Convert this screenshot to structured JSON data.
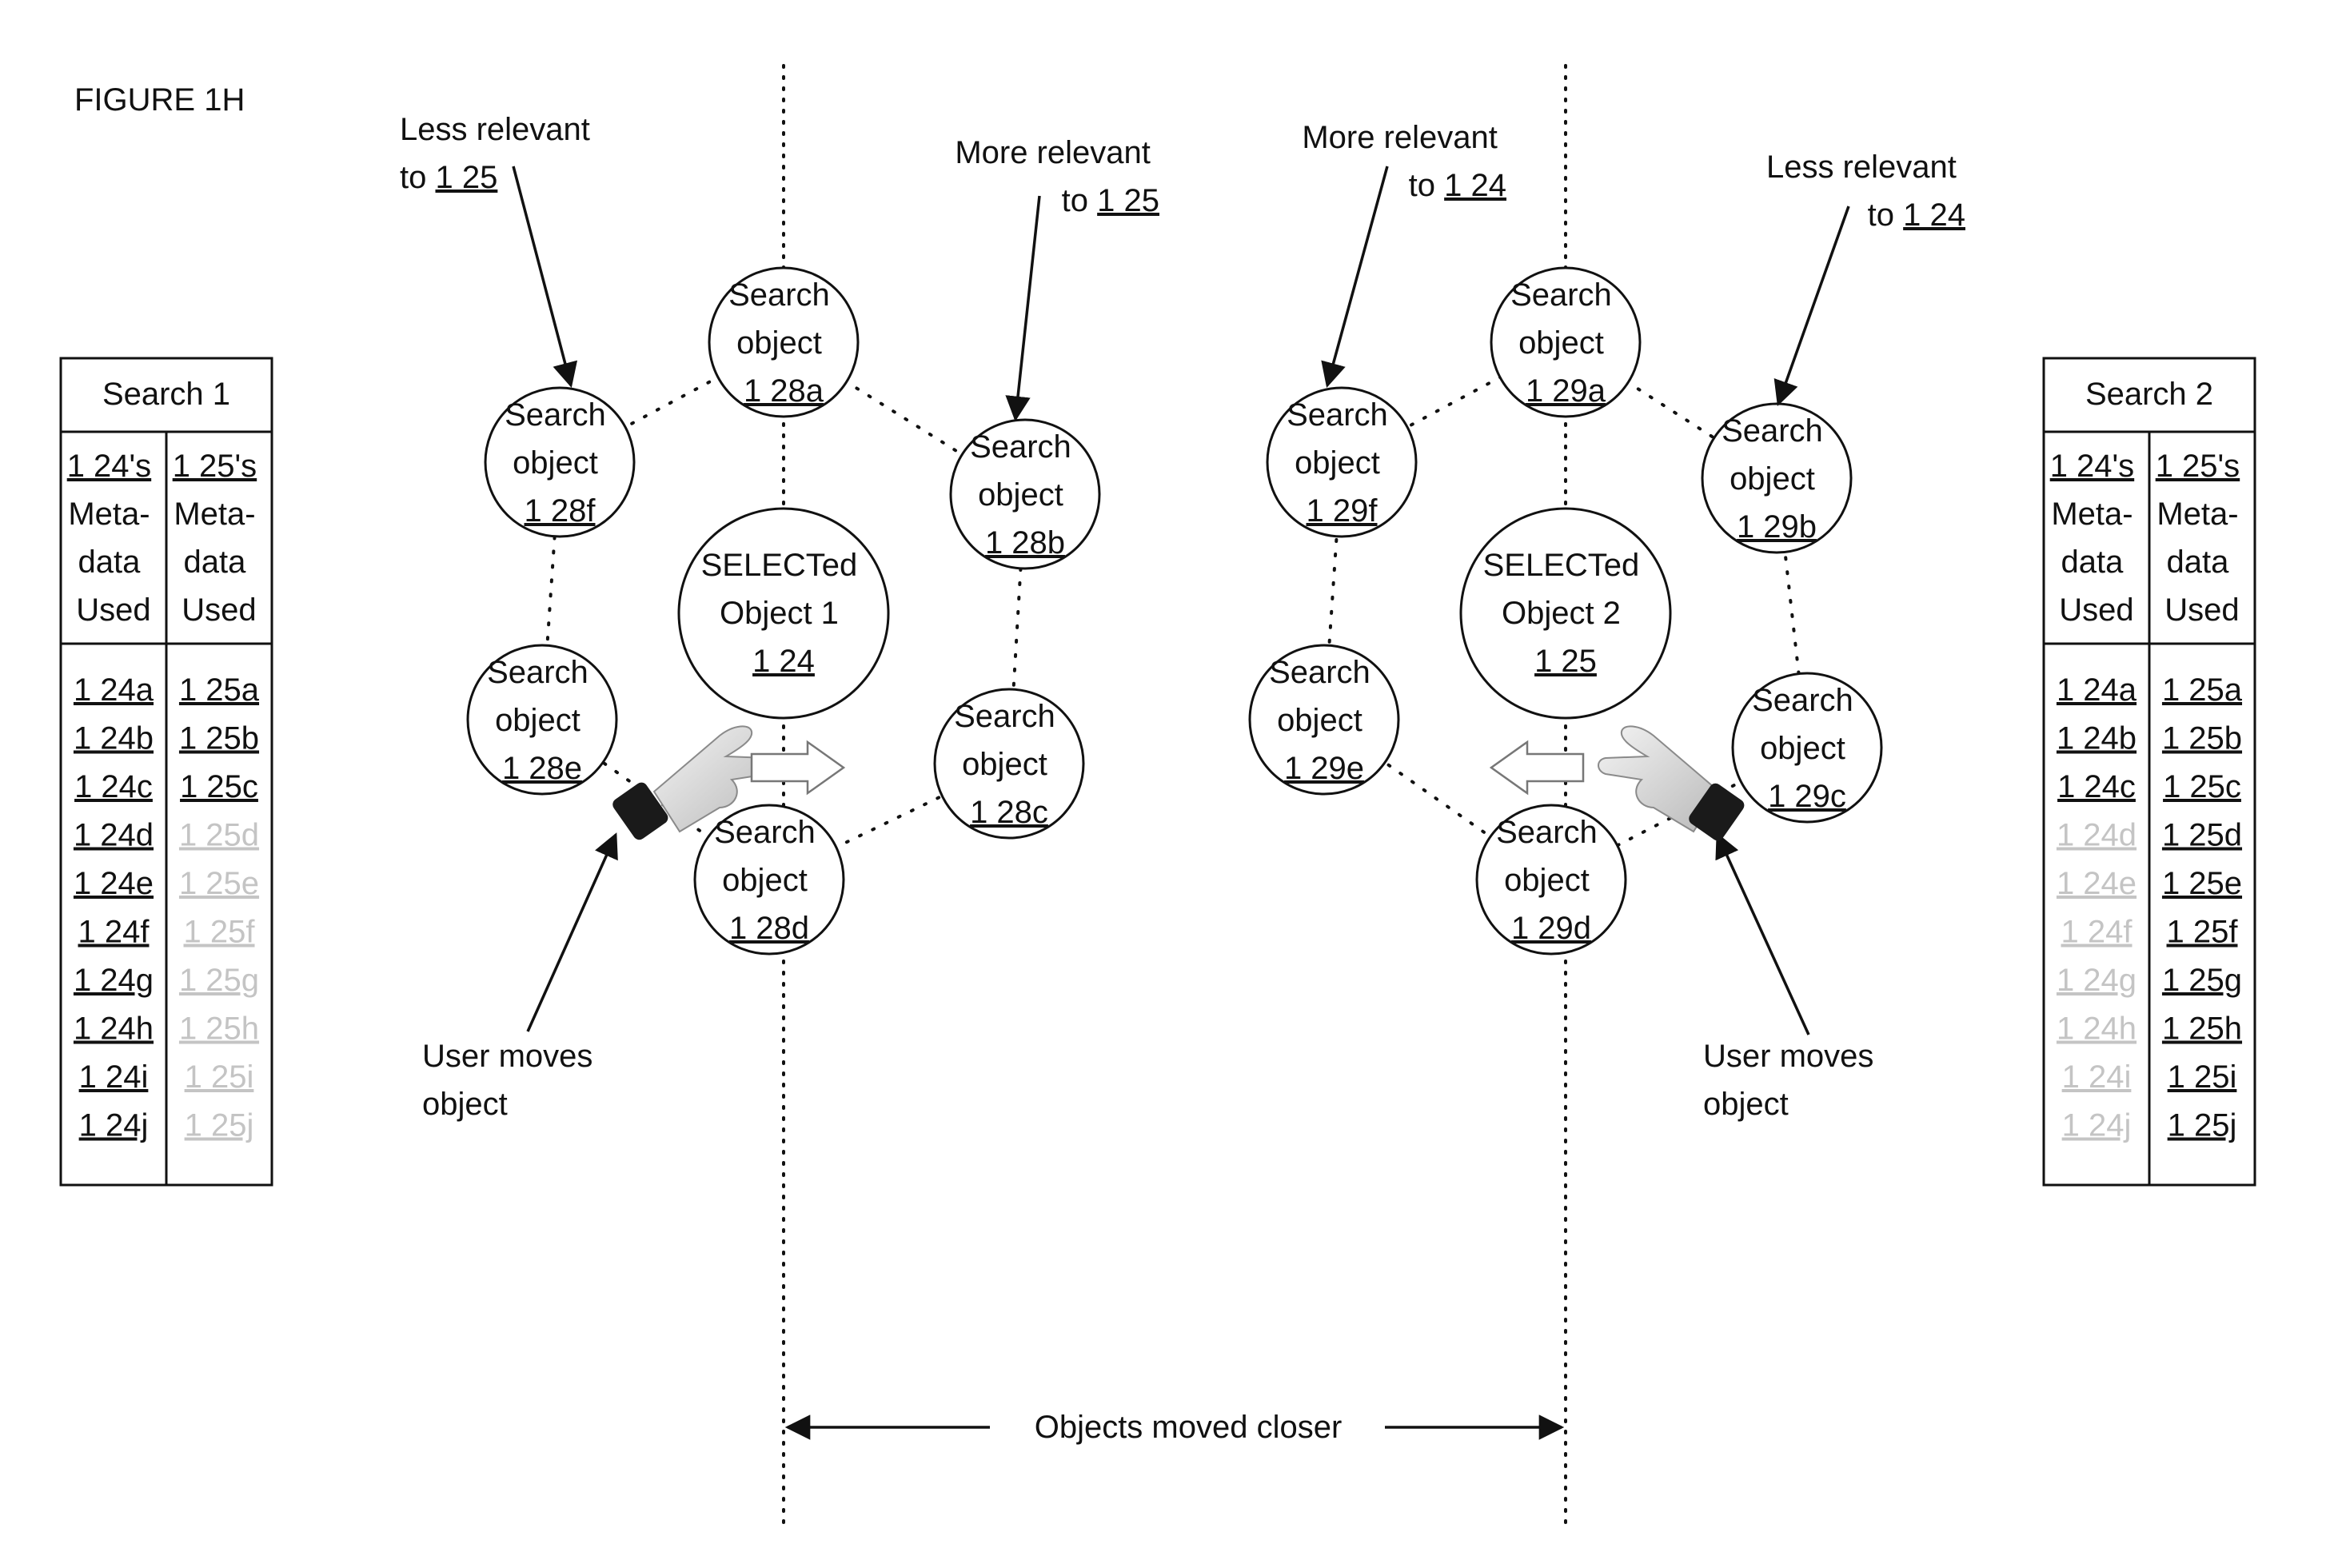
{
  "figure_label": "FIGURE 1H",
  "tables": [
    {
      "title": "Search 1",
      "col1_header": [
        "1 24's",
        "Meta-",
        "data",
        "Used"
      ],
      "col2_header": [
        "1 25's",
        "Meta-",
        "data",
        "Used"
      ],
      "col1": [
        {
          "text": "1 24a",
          "faded": false
        },
        {
          "text": "1 24b",
          "faded": false
        },
        {
          "text": "1 24c",
          "faded": false
        },
        {
          "text": "1 24d",
          "faded": false
        },
        {
          "text": "1 24e",
          "faded": false
        },
        {
          "text": "1 24f",
          "faded": false
        },
        {
          "text": "1 24g",
          "faded": false
        },
        {
          "text": "1 24h",
          "faded": false
        },
        {
          "text": "1 24i",
          "faded": false
        },
        {
          "text": "1 24j",
          "faded": false
        }
      ],
      "col2": [
        {
          "text": "1 25a",
          "faded": false
        },
        {
          "text": "1 25b",
          "faded": false
        },
        {
          "text": "1 25c",
          "faded": false
        },
        {
          "text": "1 25d",
          "faded": true
        },
        {
          "text": "1 25e",
          "faded": true
        },
        {
          "text": "1 25f",
          "faded": true
        },
        {
          "text": "1 25g",
          "faded": true
        },
        {
          "text": "1 25h",
          "faded": true
        },
        {
          "text": "1 25i",
          "faded": true
        },
        {
          "text": "1 25j",
          "faded": true
        }
      ]
    },
    {
      "title": "Search 2",
      "col1_header": [
        "1 24's",
        "Meta-",
        "data",
        "Used"
      ],
      "col2_header": [
        "1 25's",
        "Meta-",
        "data",
        "Used"
      ],
      "col1": [
        {
          "text": "1 24a",
          "faded": false
        },
        {
          "text": "1 24b",
          "faded": false
        },
        {
          "text": "1 24c",
          "faded": false
        },
        {
          "text": "1 24d",
          "faded": true
        },
        {
          "text": "1 24e",
          "faded": true
        },
        {
          "text": "1 24f",
          "faded": true
        },
        {
          "text": "1 24g",
          "faded": true
        },
        {
          "text": "1 24h",
          "faded": true
        },
        {
          "text": "1 24i",
          "faded": true
        },
        {
          "text": "1 24j",
          "faded": true
        }
      ],
      "col2": [
        {
          "text": "1 25a",
          "faded": false
        },
        {
          "text": "1 25b",
          "faded": false
        },
        {
          "text": "1 25c",
          "faded": false
        },
        {
          "text": "1 25d",
          "faded": false
        },
        {
          "text": "1 25e",
          "faded": false
        },
        {
          "text": "1 25f",
          "faded": false
        },
        {
          "text": "1 25g",
          "faded": false
        },
        {
          "text": "1 25h",
          "faded": false
        },
        {
          "text": "1 25i",
          "faded": false
        },
        {
          "text": "1 25j",
          "faded": false
        }
      ]
    }
  ],
  "clusters": [
    {
      "selected": {
        "line1": "SELECTed",
        "line2": "Object 1",
        "ref": "1 24"
      },
      "search_objects": [
        {
          "line1": "Search",
          "line2": "object",
          "ref": "1 28a"
        },
        {
          "line1": "Search",
          "line2": "object",
          "ref": "1 28b"
        },
        {
          "line1": "Search",
          "line2": "object",
          "ref": "1 28c"
        },
        {
          "line1": "Search",
          "line2": "object",
          "ref": "1 28d"
        },
        {
          "line1": "Search",
          "line2": "object",
          "ref": "1 28e"
        },
        {
          "line1": "Search",
          "line2": "object",
          "ref": "1 28f"
        }
      ],
      "less_relevant": {
        "line1": "Less relevant",
        "line2_prefix": "to ",
        "ref": "1 25"
      },
      "more_relevant": {
        "line1": "More relevant",
        "line2_prefix": "to ",
        "ref": "1 25"
      },
      "user_moves": {
        "line1": "User moves",
        "line2": "object"
      }
    },
    {
      "selected": {
        "line1": "SELECTed",
        "line2": "Object 2",
        "ref": "1 25"
      },
      "search_objects": [
        {
          "line1": "Search",
          "line2": "object",
          "ref": "1 29a"
        },
        {
          "line1": "Search",
          "line2": "object",
          "ref": "1 29b"
        },
        {
          "line1": "Search",
          "line2": "object",
          "ref": "1 29c"
        },
        {
          "line1": "Search",
          "line2": "object",
          "ref": "1 29d"
        },
        {
          "line1": "Search",
          "line2": "object",
          "ref": "1 29e"
        },
        {
          "line1": "Search",
          "line2": "object",
          "ref": "1 29f"
        }
      ],
      "more_relevant": {
        "line1": "More relevant",
        "line2_prefix": "to ",
        "ref": "1 24"
      },
      "less_relevant": {
        "line1": "Less relevant",
        "line2_prefix": "to ",
        "ref": "1 24"
      },
      "user_moves": {
        "line1": "User moves",
        "line2": "object"
      }
    }
  ],
  "moved_closer": "Objects moved closer",
  "colors": {
    "ink": "#111111",
    "faded": "#c4c4c4",
    "hand_cuff": "#1a1a1a"
  },
  "icons": [
    "pointing-hand-icon",
    "hollow-arrow-right-icon",
    "hollow-arrow-left-icon"
  ]
}
